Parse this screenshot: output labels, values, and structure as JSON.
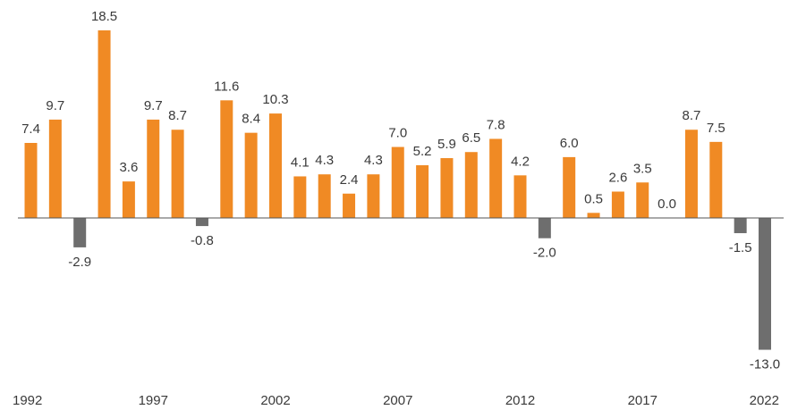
{
  "chart_data": {
    "type": "bar",
    "title": "",
    "xlabel": "",
    "ylabel": "",
    "ylim": [
      -13.0,
      18.5
    ],
    "grid": false,
    "legend": "none",
    "categories": [
      "1992",
      "1993",
      "1994",
      "1995",
      "1996",
      "1997",
      "1998",
      "1999",
      "2000",
      "2001",
      "2002",
      "2003",
      "2004",
      "2005",
      "2006",
      "2007",
      "2008",
      "2009",
      "2010",
      "2011",
      "2012",
      "2013",
      "2014",
      "2015",
      "2016",
      "2017",
      "2018",
      "2019",
      "2020",
      "2021",
      "2022"
    ],
    "values": [
      7.4,
      9.7,
      -2.9,
      18.5,
      3.6,
      9.7,
      8.7,
      -0.8,
      11.6,
      8.4,
      10.3,
      4.1,
      4.3,
      2.4,
      4.3,
      7.0,
      5.2,
      5.9,
      6.5,
      7.8,
      4.2,
      -2.0,
      6.0,
      0.5,
      2.6,
      3.5,
      0.0,
      8.7,
      7.5,
      -1.5,
      -13.0
    ],
    "value_labels": [
      "7.4",
      "9.7",
      "-2.9",
      "18.5",
      "3.6",
      "9.7",
      "8.7",
      "-0.8",
      "11.6",
      "8.4",
      "10.3",
      "4.1",
      "4.3",
      "2.4",
      "4.3",
      "7.0",
      "5.2",
      "5.9",
      "6.5",
      "7.8",
      "4.2",
      "-2.0",
      "6.0",
      "0.5",
      "2.6",
      "3.5",
      "0.0",
      "8.7",
      "7.5",
      "-1.5",
      "-13.0"
    ],
    "x_tick_labels": [
      "1992",
      "1997",
      "2002",
      "2007",
      "2012",
      "2017",
      "2022"
    ],
    "colors": {
      "positive": "#f08a24",
      "negative": "#6e6e6e",
      "axis": "#555555",
      "text": "#3a3a3a"
    }
  }
}
